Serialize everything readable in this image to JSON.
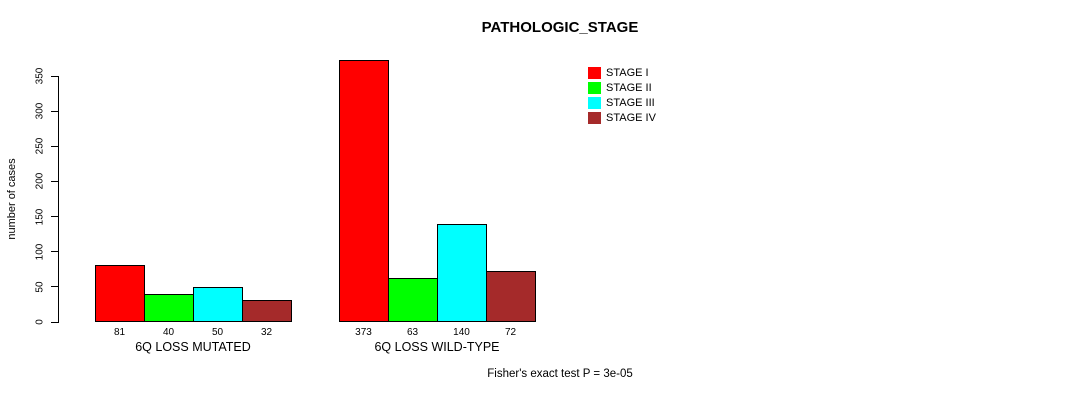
{
  "chart_data": {
    "type": "bar",
    "title": "PATHOLOGIC_STAGE",
    "ylabel": "number of cases",
    "ylim": [
      0,
      350
    ],
    "yticks": [
      0,
      50,
      100,
      150,
      200,
      250,
      300,
      350
    ],
    "categories": [
      "6Q LOSS MUTATED",
      "6Q LOSS WILD-TYPE"
    ],
    "series": [
      {
        "name": "STAGE I",
        "color": "#FF0000",
        "values": [
          81,
          373
        ]
      },
      {
        "name": "STAGE II",
        "color": "#00FF00",
        "values": [
          40,
          63
        ]
      },
      {
        "name": "STAGE III",
        "color": "#00FFFF",
        "values": [
          50,
          140
        ]
      },
      {
        "name": "STAGE IV",
        "color": "#A52A2A",
        "values": [
          32,
          72
        ]
      }
    ],
    "grid": false,
    "legend_position": "top-right",
    "bar_value_labels": true,
    "annotation": "Fisher's exact test P = 3e-05"
  }
}
